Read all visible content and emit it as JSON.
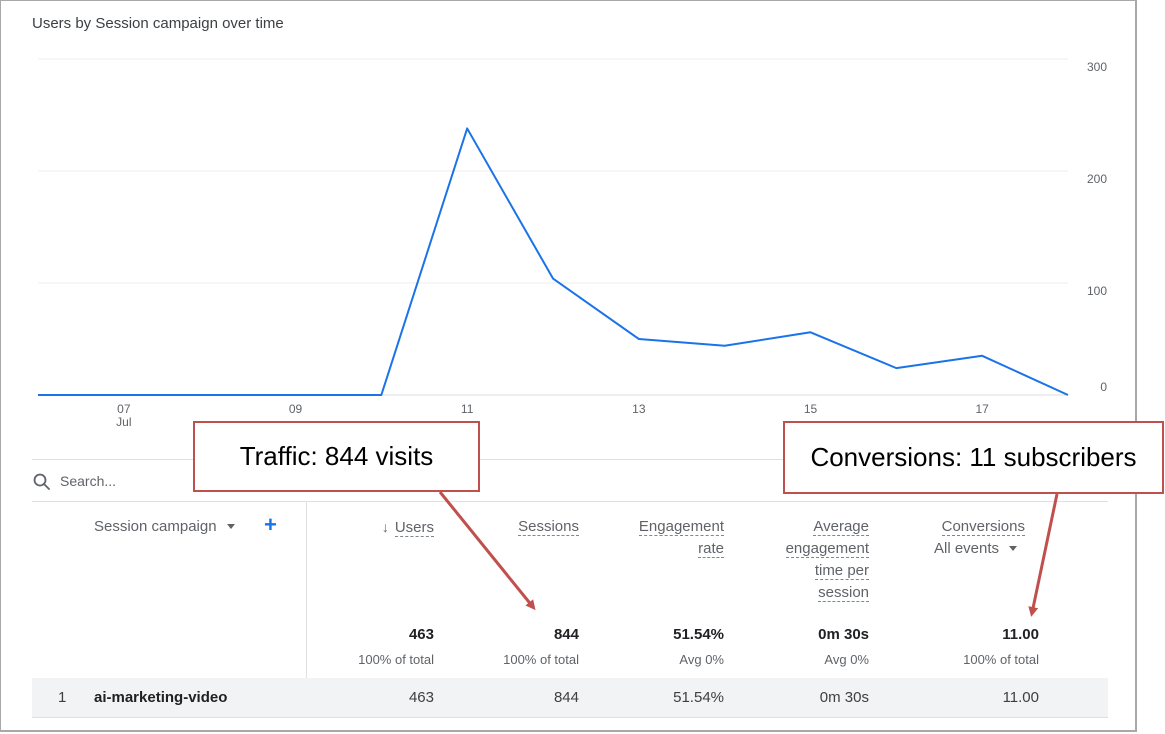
{
  "chart": {
    "title": "Users by Session campaign over time"
  },
  "chart_data": {
    "type": "line",
    "title": "Users by Session campaign over time",
    "x": [
      "06",
      "07",
      "08",
      "09",
      "10",
      "11",
      "12",
      "13",
      "14",
      "15",
      "16",
      "17",
      "18"
    ],
    "x_tick_labels": [
      "07",
      "09",
      "11",
      "13",
      "15",
      "17"
    ],
    "x_month_label": "Jul",
    "series": [
      {
        "values": [
          0,
          0,
          0,
          0,
          0,
          238,
          104,
          50,
          44,
          56,
          24,
          35,
          0
        ],
        "color": "#1a73e8"
      }
    ],
    "y_tick_labels": [
      "0",
      "100",
      "200",
      "300"
    ],
    "ylim": [
      0,
      300
    ],
    "y_axis_position": "right",
    "grid": true
  },
  "search": {
    "placeholder": "Search..."
  },
  "table": {
    "dimension_header": "Session campaign",
    "add_dimension_label": "+",
    "columns": [
      {
        "label": "Users",
        "sorted": true,
        "sort_glyph": "🡣",
        "total": "463",
        "total_sub": "100% of total"
      },
      {
        "label": "Sessions",
        "total": "844",
        "total_sub": "100% of total"
      },
      {
        "label_lines": [
          "Engagement",
          "rate"
        ],
        "total": "51.54%",
        "total_sub": "Avg 0%"
      },
      {
        "label_lines": [
          "Average",
          "engagement",
          "time per",
          "session"
        ],
        "total": "0m 30s",
        "total_sub": "Avg 0%"
      },
      {
        "label": "Conversions",
        "sub_label": "All events",
        "total": "11.00",
        "total_sub": "100% of total"
      }
    ],
    "rows": [
      {
        "index": "1",
        "campaign": "ai-marketing-video",
        "users": "463",
        "sessions": "844",
        "engagement_rate": "51.54%",
        "avg_time": "0m 30s",
        "conversions": "11.00"
      }
    ]
  },
  "annotations": {
    "traffic": "Traffic: 844 visits",
    "conversions": "Conversions: 11 subscribers",
    "color": "#c0504d"
  }
}
